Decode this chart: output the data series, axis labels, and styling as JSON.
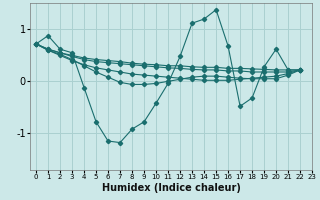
{
  "xlabel": "Humidex (Indice chaleur)",
  "bg_color": "#cce8e8",
  "grid_color": "#aad0d0",
  "line_color": "#1a6e6e",
  "xlim": [
    -0.5,
    23
  ],
  "ylim": [
    -1.7,
    1.5
  ],
  "yticks": [
    -1,
    0,
    1
  ],
  "xticks": [
    0,
    1,
    2,
    3,
    4,
    5,
    6,
    7,
    8,
    9,
    10,
    11,
    12,
    13,
    14,
    15,
    16,
    17,
    18,
    19,
    20,
    21,
    22,
    23
  ],
  "series": [
    [
      0.72,
      0.88,
      0.62,
      0.55,
      -0.12,
      -0.78,
      -1.15,
      -1.18,
      -0.92,
      -0.78,
      -0.42,
      -0.04,
      0.48,
      1.12,
      1.2,
      1.38,
      0.68,
      -0.48,
      -0.32,
      0.28,
      0.62,
      0.22,
      0.22
    ],
    [
      0.72,
      0.62,
      0.55,
      0.5,
      0.45,
      0.42,
      0.4,
      0.38,
      0.35,
      0.33,
      0.32,
      0.3,
      0.3,
      0.28,
      0.27,
      0.27,
      0.25,
      0.25,
      0.24,
      0.23,
      0.22,
      0.22,
      0.22
    ],
    [
      0.72,
      0.62,
      0.55,
      0.48,
      0.42,
      0.38,
      0.36,
      0.34,
      0.32,
      0.3,
      0.28,
      0.26,
      0.25,
      0.23,
      0.22,
      0.22,
      0.2,
      0.2,
      0.18,
      0.18,
      0.18,
      0.18,
      0.22
    ],
    [
      0.72,
      0.6,
      0.52,
      0.42,
      0.3,
      0.18,
      0.08,
      -0.02,
      -0.06,
      -0.06,
      -0.04,
      0.0,
      0.04,
      0.08,
      0.1,
      0.1,
      0.08,
      0.06,
      0.05,
      0.05,
      0.05,
      0.12,
      0.22
    ],
    [
      0.72,
      0.6,
      0.5,
      0.4,
      0.32,
      0.26,
      0.22,
      0.18,
      0.14,
      0.12,
      0.1,
      0.08,
      0.06,
      0.04,
      0.02,
      0.02,
      0.02,
      0.04,
      0.06,
      0.08,
      0.1,
      0.15,
      0.22
    ]
  ],
  "x_values": [
    0,
    1,
    2,
    3,
    4,
    5,
    6,
    7,
    8,
    9,
    10,
    11,
    12,
    13,
    14,
    15,
    16,
    17,
    18,
    19,
    20,
    21,
    22
  ]
}
